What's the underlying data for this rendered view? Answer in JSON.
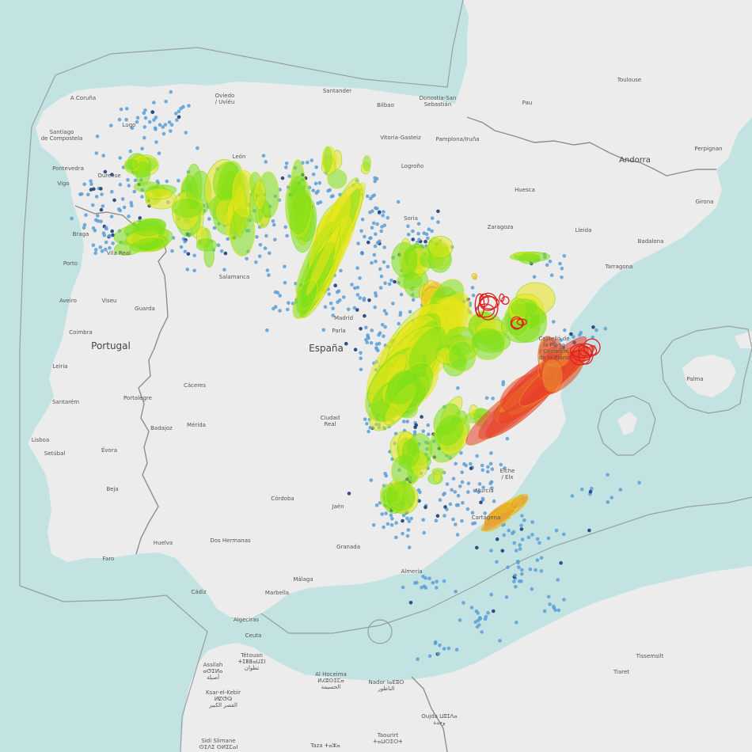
{
  "colors": {
    "sea": "#c3e3e3",
    "land": "#ececec",
    "border": "#8e8e8e",
    "storm_low": "#7fe01a",
    "storm_mid": "#e8e61a",
    "storm_high": "#e89a30",
    "storm_severe": "#e8402a",
    "storm_outline_red": "#e02020",
    "strike_light": "#5b9fd6",
    "strike_dark": "#1d3f7a"
  },
  "labels": {
    "countries": [
      {
        "key": "portugal",
        "text": "Portugal"
      },
      {
        "key": "espana",
        "text": "España"
      },
      {
        "key": "andorra",
        "text": "Andorra"
      }
    ],
    "cities": [
      {
        "key": "a_coruna",
        "text": "A Coruña"
      },
      {
        "key": "oviedo",
        "text": "Oviedo\n/ Uviéu"
      },
      {
        "key": "santander",
        "text": "Santander"
      },
      {
        "key": "bilbao",
        "text": "Bilbao"
      },
      {
        "key": "donostia",
        "text": "Donostia-San\nSebastián"
      },
      {
        "key": "toulouse",
        "text": "Toulouse"
      },
      {
        "key": "pau",
        "text": "Pau"
      },
      {
        "key": "santiago",
        "text": "Santiago\nde Compostela"
      },
      {
        "key": "lugo",
        "text": "Lugo"
      },
      {
        "key": "leon",
        "text": "León"
      },
      {
        "key": "vitoria",
        "text": "Vitoria-Gasteiz"
      },
      {
        "key": "pamplona",
        "text": "Pamplona/Iruña"
      },
      {
        "key": "perpignan",
        "text": "Perpignan"
      },
      {
        "key": "pontevedra",
        "text": "Pontevedra"
      },
      {
        "key": "vigo",
        "text": "Vigo"
      },
      {
        "key": "ourense",
        "text": "Ourense"
      },
      {
        "key": "logrono",
        "text": "Logroño"
      },
      {
        "key": "huesca",
        "text": "Huesca"
      },
      {
        "key": "girona",
        "text": "Girona"
      },
      {
        "key": "braga",
        "text": "Braga"
      },
      {
        "key": "soria",
        "text": "Soria"
      },
      {
        "key": "zaragoza",
        "text": "Zaragoza"
      },
      {
        "key": "lleida",
        "text": "Lleida"
      },
      {
        "key": "badalona",
        "text": "Badalona"
      },
      {
        "key": "porto",
        "text": "Porto"
      },
      {
        "key": "vila_real",
        "text": "Vila Real"
      },
      {
        "key": "tarragona",
        "text": "Tarragona"
      },
      {
        "key": "salamanca",
        "text": "Salamanca"
      },
      {
        "key": "aveiro",
        "text": "Aveiro"
      },
      {
        "key": "viseu",
        "text": "Viseu"
      },
      {
        "key": "guarda",
        "text": "Guarda"
      },
      {
        "key": "madrid",
        "text": "Madrid"
      },
      {
        "key": "parla",
        "text": "Parla"
      },
      {
        "key": "coimbra",
        "text": "Coimbra"
      },
      {
        "key": "castellon",
        "text": "Castelló de\nla Plana\n/ Castellón\nde la Plana"
      },
      {
        "key": "palma",
        "text": "Palma"
      },
      {
        "key": "leiria",
        "text": "Leiria"
      },
      {
        "key": "caceres",
        "text": "Cáceres"
      },
      {
        "key": "santarem",
        "text": "Santarém"
      },
      {
        "key": "portalegre",
        "text": "Portalegre"
      },
      {
        "key": "ciudad_real",
        "text": "Ciudad\nReal"
      },
      {
        "key": "badajoz",
        "text": "Badajoz"
      },
      {
        "key": "merida",
        "text": "Mérida"
      },
      {
        "key": "lisboa",
        "text": "Lisboa"
      },
      {
        "key": "setubal",
        "text": "Setúbal"
      },
      {
        "key": "evora",
        "text": "Évora"
      },
      {
        "key": "elx",
        "text": "Elche\n/ Elx"
      },
      {
        "key": "murcia",
        "text": "Murcia"
      },
      {
        "key": "beja",
        "text": "Beja"
      },
      {
        "key": "cordoba",
        "text": "Córdoba"
      },
      {
        "key": "jaen",
        "text": "Jaén"
      },
      {
        "key": "cartagena",
        "text": "Cartagena"
      },
      {
        "key": "faro",
        "text": "Faro"
      },
      {
        "key": "huelva",
        "text": "Huelva"
      },
      {
        "key": "dos_hermanas",
        "text": "Dos Hermanas"
      },
      {
        "key": "granada",
        "text": "Granada"
      },
      {
        "key": "almeria",
        "text": "Almería"
      },
      {
        "key": "cadiz",
        "text": "Cádiz"
      },
      {
        "key": "marbella",
        "text": "Marbella"
      },
      {
        "key": "malaga",
        "text": "Málaga"
      },
      {
        "key": "algeciras",
        "text": "Algeciras"
      },
      {
        "key": "ceuta",
        "text": "Ceuta"
      },
      {
        "key": "tetouan",
        "text": "Tétouan\nⵜⵉⵟⵟⴰⵡⵉⵏ\nتطوان"
      },
      {
        "key": "assilah",
        "text": "Assilah\nⴰⵚⵉⵍⴰ\nأصيلة"
      },
      {
        "key": "al_hoceima",
        "text": "Al Hoceima\nⵍⵃⵓⵙⵉⵎⴰ\nالحسيمة"
      },
      {
        "key": "nador",
        "text": "Nador ⵏⴰⴹⵓⵔ\nالناظور"
      },
      {
        "key": "ksar_el_kebir",
        "text": "Ksar-el-Kebir\nⵍⵇⵚⵕ\nالقصر الكبير"
      },
      {
        "key": "sidi_slimane",
        "text": "Sidi Slimane\nⵙⵉⴷⵉ ⵙⵍⵉⵎⴰⵏ"
      },
      {
        "key": "taourirt",
        "text": "Taourirt\nⵜⴰⵡⵔⵉⵔⵜ"
      },
      {
        "key": "taza",
        "text": "Taza ⵜⴰⵣⴰ"
      },
      {
        "key": "oujda",
        "text": "Oujda ⵡⵓⵊⴷⴰ\nوجدة"
      },
      {
        "key": "tissemsilt",
        "text": "Tissemsilt"
      },
      {
        "key": "tiaret",
        "text": "Tiaret"
      }
    ]
  }
}
